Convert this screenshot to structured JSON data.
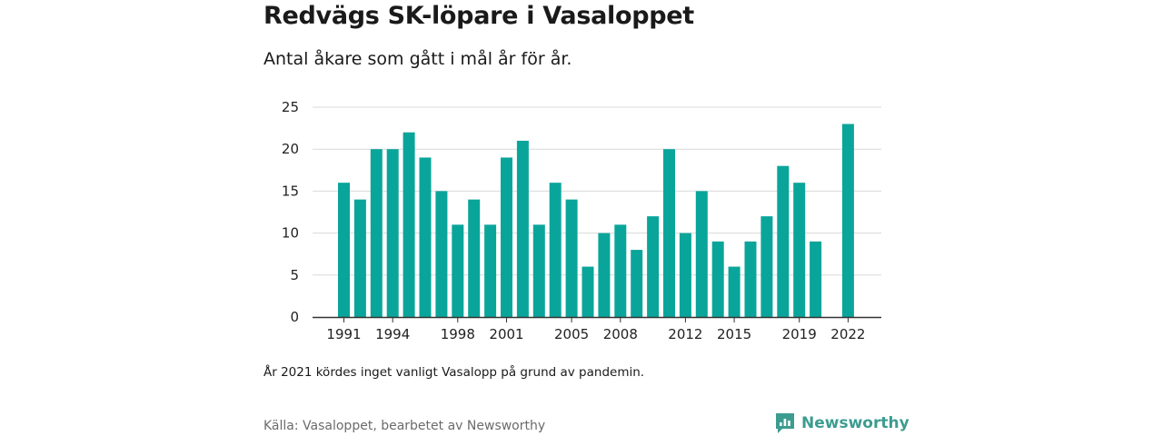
{
  "header": {
    "title": "Redvägs SK-löpare i Vasaloppet",
    "subtitle": "Antal åkare som gått i mål år för år."
  },
  "footer": {
    "note": "År 2021 kördes inget vanligt Vasalopp på grund av pandemin.",
    "source": "Källa: Vasaloppet, bearbetet av Newsworthy",
    "brand": "Newsworthy",
    "brand_icon": "newsworthy-logo-icon"
  },
  "colors": {
    "bar": "#0aa59a",
    "grid": "#d9d9d9",
    "axis": "#333333",
    "brand": "#3c9c90"
  },
  "chart_data": {
    "type": "bar",
    "title": "Redvägs SK-löpare i Vasaloppet",
    "subtitle": "Antal åkare som gått i mål år för år.",
    "xlabel": "",
    "ylabel": "",
    "ylim": [
      0,
      25
    ],
    "yticks": [
      0,
      5,
      10,
      15,
      20,
      25
    ],
    "xtick_labels": [
      "1991",
      "1994",
      "1998",
      "2001",
      "2005",
      "2008",
      "2012",
      "2015",
      "2019",
      "2022"
    ],
    "grid": true,
    "categories": [
      1991,
      1992,
      1993,
      1994,
      1995,
      1996,
      1997,
      1998,
      1999,
      2000,
      2001,
      2002,
      2003,
      2004,
      2005,
      2006,
      2007,
      2008,
      2009,
      2010,
      2011,
      2012,
      2013,
      2014,
      2015,
      2016,
      2017,
      2018,
      2019,
      2020,
      2021,
      2022
    ],
    "values": [
      16,
      14,
      20,
      20,
      22,
      19,
      15,
      11,
      14,
      11,
      19,
      21,
      11,
      16,
      14,
      6,
      10,
      11,
      8,
      12,
      20,
      10,
      15,
      9,
      6,
      9,
      12,
      18,
      16,
      9,
      null,
      23
    ]
  }
}
